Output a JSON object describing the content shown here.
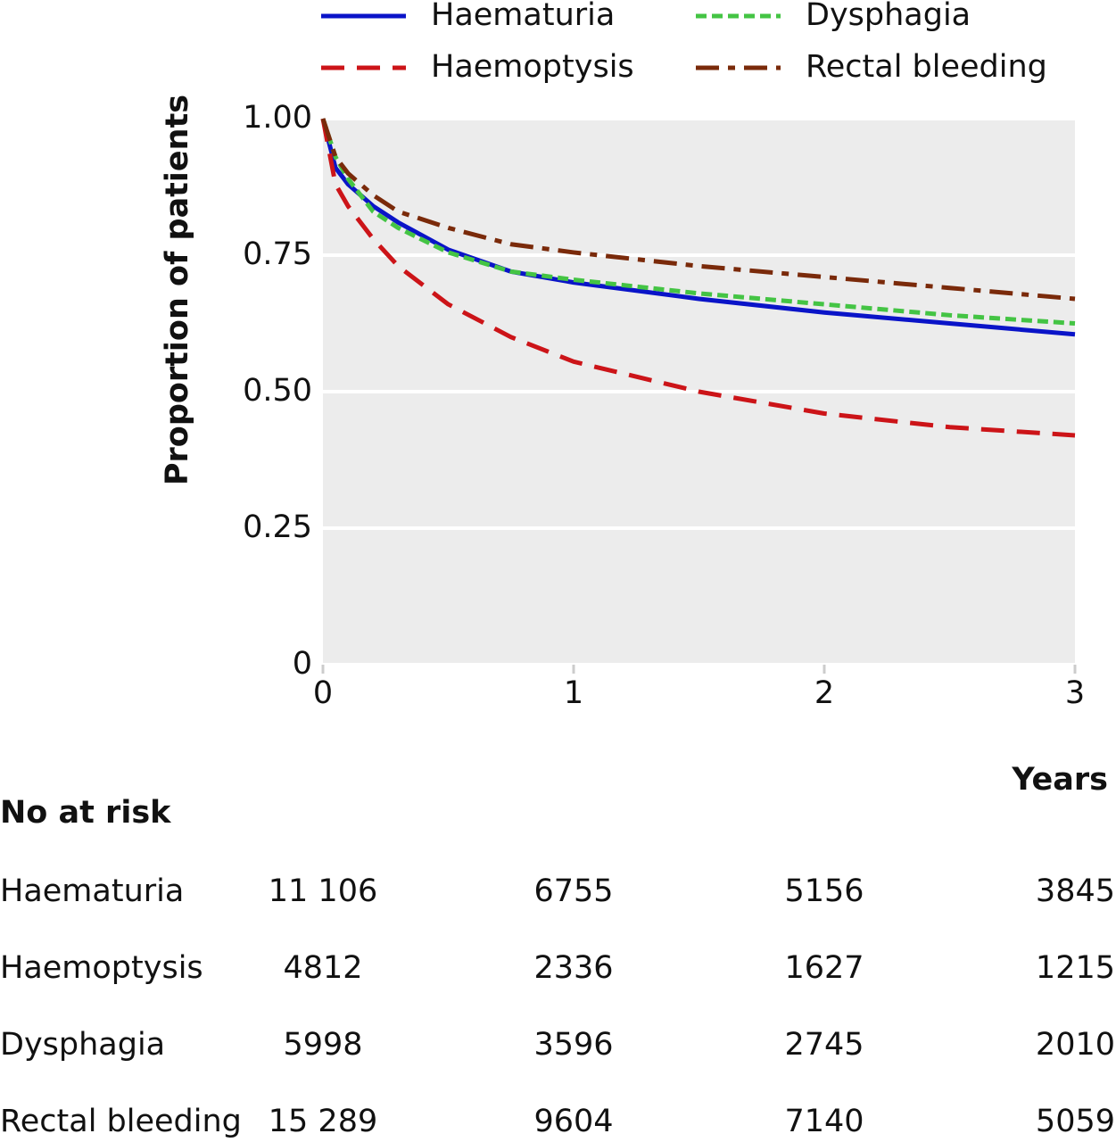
{
  "chart_data": {
    "type": "line",
    "ylabel": "Proportion of patients",
    "xlabel": "Years",
    "x": [
      0,
      0.05,
      0.1,
      0.2,
      0.3,
      0.5,
      0.75,
      1,
      1.5,
      2,
      2.5,
      3
    ],
    "series": [
      {
        "name": "Haematuria",
        "color": "#0a14c8",
        "dash": "solid",
        "values": [
          1.0,
          0.91,
          0.88,
          0.84,
          0.81,
          0.76,
          0.72,
          0.7,
          0.67,
          0.645,
          0.625,
          0.605
        ]
      },
      {
        "name": "Dysphagia",
        "color": "#44c444",
        "dash": "dotted",
        "values": [
          1.0,
          0.93,
          0.89,
          0.83,
          0.8,
          0.755,
          0.72,
          0.705,
          0.68,
          0.66,
          0.64,
          0.625
        ]
      },
      {
        "name": "Haemoptysis",
        "color": "#cc1418",
        "dash": "dashed",
        "values": [
          1.0,
          0.88,
          0.84,
          0.78,
          0.73,
          0.66,
          0.6,
          0.555,
          0.5,
          0.46,
          0.435,
          0.42
        ]
      },
      {
        "name": "Rectal bleeding",
        "color": "#7a2a0a",
        "dash": "dashdot",
        "values": [
          1.0,
          0.93,
          0.9,
          0.86,
          0.83,
          0.8,
          0.77,
          0.755,
          0.73,
          0.71,
          0.69,
          0.67
        ]
      }
    ],
    "xlim": [
      0,
      3
    ],
    "xticks": [
      0,
      1,
      2,
      3
    ],
    "ylim": [
      0,
      1
    ],
    "yticks": [
      0,
      {
        "value": 0.25,
        "label": "0.25"
      },
      {
        "value": 0.5,
        "label": "0.50"
      },
      {
        "value": 0.75,
        "label": "0.75"
      },
      {
        "value": 1,
        "label": "1.00"
      }
    ],
    "grid": true
  },
  "at_risk": {
    "title": "No at risk",
    "rows": [
      {
        "label": "Haematuria",
        "values": [
          "11 106",
          "6755",
          "5156",
          "3845"
        ]
      },
      {
        "label": "Haemoptysis",
        "values": [
          "4812",
          "2336",
          "1627",
          "1215"
        ]
      },
      {
        "label": "Dysphagia",
        "values": [
          "5998",
          "3596",
          "2745",
          "2010"
        ]
      },
      {
        "label": "Rectal bleeding",
        "values": [
          "15 289",
          "9604",
          "7140",
          "5059"
        ]
      }
    ]
  }
}
